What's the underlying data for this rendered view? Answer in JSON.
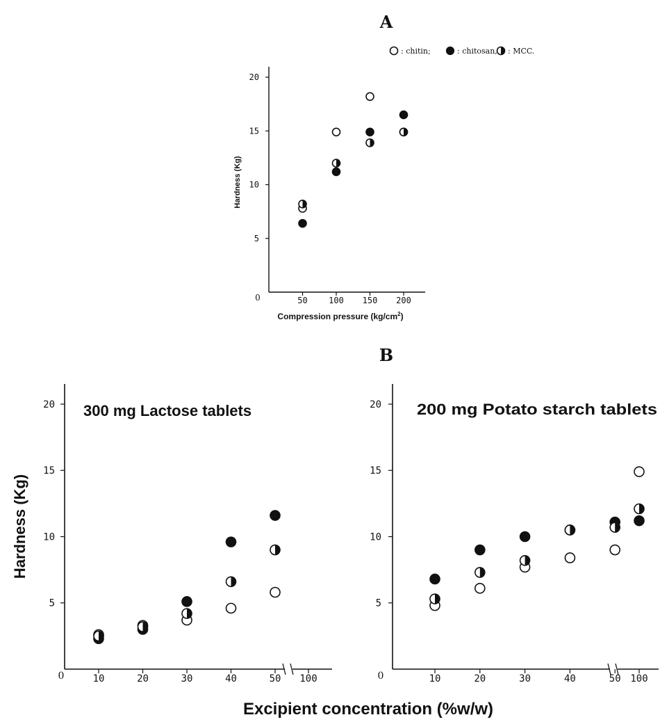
{
  "panel_labels": {
    "a": "A",
    "b": "B"
  },
  "legend": {
    "chitin_label": ": chitin;",
    "chitosan_label": ": chitosan,",
    "mcc_label": ": MCC."
  },
  "shared_xlabel": "Excipient concentration (%w/w)",
  "colors": {
    "ink": "#111111",
    "background": "#ffffff"
  },
  "chart_data": [
    {
      "id": "A",
      "type": "scatter",
      "title": "",
      "xlabel": "Compression pressure (kg/cm",
      "xlabel_sup": "2",
      "xlabel_close": ")",
      "ylabel": "Hardness (Kg)",
      "origin_label": "0",
      "xticks": [
        "50",
        "100",
        "150",
        "200"
      ],
      "xtick_values": [
        50,
        100,
        150,
        200
      ],
      "yticks": [
        "5",
        "10",
        "15",
        "20"
      ],
      "ytick_values": [
        5,
        10,
        15,
        20
      ],
      "xlim": [
        0,
        220
      ],
      "ylim": [
        0,
        21
      ],
      "grid": false,
      "legend_position": "top-right",
      "series": [
        {
          "name": "chitin",
          "marker": "open",
          "x": [
            50,
            100,
            150,
            200
          ],
          "y": [
            7.8,
            14.9,
            18.2,
            14.9
          ]
        },
        {
          "name": "chitosan",
          "marker": "filled",
          "x": [
            50,
            100,
            150,
            200
          ],
          "y": [
            6.4,
            11.2,
            14.9,
            16.5
          ]
        },
        {
          "name": "MCC",
          "marker": "half",
          "x": [
            50,
            100,
            150,
            200
          ],
          "y": [
            8.2,
            12.0,
            13.9,
            14.9
          ]
        }
      ]
    },
    {
      "id": "B-lactose",
      "type": "scatter",
      "title": "300 mg Lactose tablets",
      "xlabel": "",
      "ylabel": "Hardness (Kg)",
      "origin_label": "0",
      "xticks": [
        "10",
        "20",
        "30",
        "40",
        "50",
        "100"
      ],
      "xtick_values": [
        10,
        20,
        30,
        40,
        50,
        100
      ],
      "yticks": [
        "5",
        "10",
        "15",
        "20"
      ],
      "ytick_values": [
        5,
        10,
        15,
        20
      ],
      "x_axis_break": "between 50 and 100",
      "ylim": [
        0,
        21
      ],
      "grid": false,
      "series": [
        {
          "name": "chitin",
          "marker": "open",
          "x": [
            10,
            20,
            30,
            40,
            50
          ],
          "y": [
            2.6,
            3.3,
            3.7,
            4.6,
            5.8
          ]
        },
        {
          "name": "chitosan",
          "marker": "filled",
          "x": [
            10,
            20,
            30,
            40,
            50
          ],
          "y": [
            2.3,
            3.0,
            5.1,
            9.6,
            11.6
          ]
        },
        {
          "name": "MCC",
          "marker": "half",
          "x": [
            10,
            20,
            30,
            40,
            50
          ],
          "y": [
            2.5,
            3.2,
            4.2,
            6.6,
            9.0
          ]
        }
      ]
    },
    {
      "id": "B-potato",
      "type": "scatter",
      "title": "200 mg Potato starch tablets",
      "xlabel": "",
      "ylabel": "",
      "origin_label": "0",
      "xticks": [
        "10",
        "20",
        "30",
        "40",
        "50",
        "100"
      ],
      "xtick_values": [
        10,
        20,
        30,
        40,
        50,
        100
      ],
      "yticks": [
        "5",
        "10",
        "15",
        "20"
      ],
      "ytick_values": [
        5,
        10,
        15,
        20
      ],
      "x_axis_break": "between 50 and 100",
      "ylim": [
        0,
        21
      ],
      "grid": false,
      "series": [
        {
          "name": "chitin",
          "marker": "open",
          "x": [
            10,
            20,
            30,
            40,
            50,
            100
          ],
          "y": [
            4.8,
            6.1,
            7.7,
            8.4,
            9.0,
            14.9
          ]
        },
        {
          "name": "chitosan",
          "marker": "filled",
          "x": [
            10,
            20,
            30,
            40,
            50,
            100
          ],
          "y": [
            6.8,
            9.0,
            10.0,
            10.5,
            11.1,
            11.2
          ]
        },
        {
          "name": "MCC",
          "marker": "half",
          "x": [
            10,
            20,
            30,
            40,
            50,
            100
          ],
          "y": [
            5.3,
            7.3,
            8.2,
            10.5,
            10.7,
            12.1
          ]
        }
      ]
    }
  ]
}
